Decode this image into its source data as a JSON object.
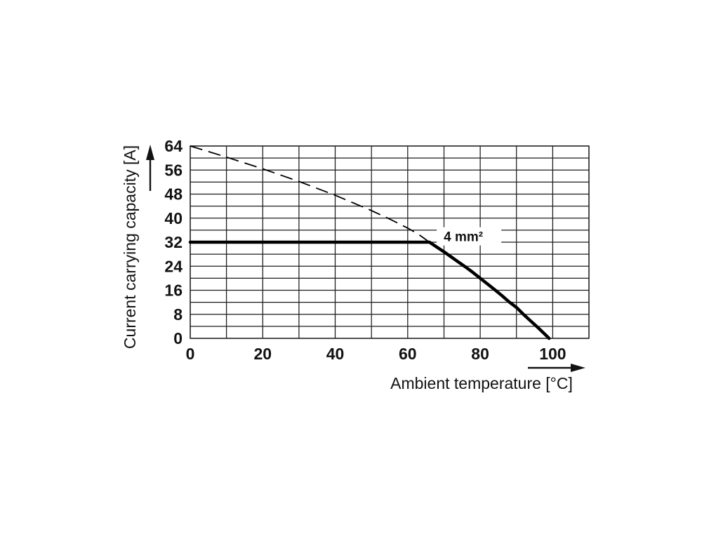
{
  "figure": {
    "background_color": "#ffffff",
    "line_color": "#000000",
    "grid_color": "#1c1c1c",
    "text_color": "#121212"
  },
  "chart_data": {
    "type": "line",
    "title": "",
    "xlabel": "Ambient temperature [°C]",
    "ylabel": "Current carrying capacity [A]",
    "xlim": [
      0,
      110
    ],
    "ylim": [
      0,
      64
    ],
    "x_ticks": [
      0,
      20,
      40,
      60,
      80,
      100
    ],
    "y_ticks": [
      0,
      8,
      16,
      24,
      32,
      40,
      48,
      56,
      64
    ],
    "grid": {
      "visible": true,
      "x_step": 10,
      "y_step": 4
    },
    "legend": {
      "visible": false
    },
    "series": [
      {
        "name": "derating-curve-dashed",
        "style": "dashed",
        "stroke_width": 1.8,
        "points": [
          [
            0,
            64
          ],
          [
            10,
            60.3
          ],
          [
            20,
            56.4
          ],
          [
            30,
            52.2
          ],
          [
            40,
            47.6
          ],
          [
            50,
            42.5
          ],
          [
            55,
            39.7
          ],
          [
            60,
            36.7
          ],
          [
            63,
            34.6
          ],
          [
            66,
            32
          ]
        ]
      },
      {
        "name": "capacity-limit-4mm2-solid",
        "style": "solid",
        "stroke_width": 4.5,
        "points": [
          [
            0,
            32
          ],
          [
            66,
            32
          ],
          [
            68,
            30.4
          ],
          [
            70,
            28.8
          ],
          [
            72,
            27.1
          ],
          [
            74,
            25.4
          ],
          [
            76,
            23.7
          ],
          [
            78,
            21.9
          ],
          [
            80,
            20
          ],
          [
            82,
            18.1
          ],
          [
            84,
            16.2
          ],
          [
            86,
            14.2
          ],
          [
            88,
            12.1
          ],
          [
            90,
            10.3
          ],
          [
            92,
            7.9
          ],
          [
            94,
            5.7
          ],
          [
            96,
            3.5
          ],
          [
            98,
            1.2
          ],
          [
            99,
            0
          ]
        ]
      }
    ],
    "annotation": {
      "label": "4 mm²",
      "x": 68,
      "y": 37
    }
  }
}
